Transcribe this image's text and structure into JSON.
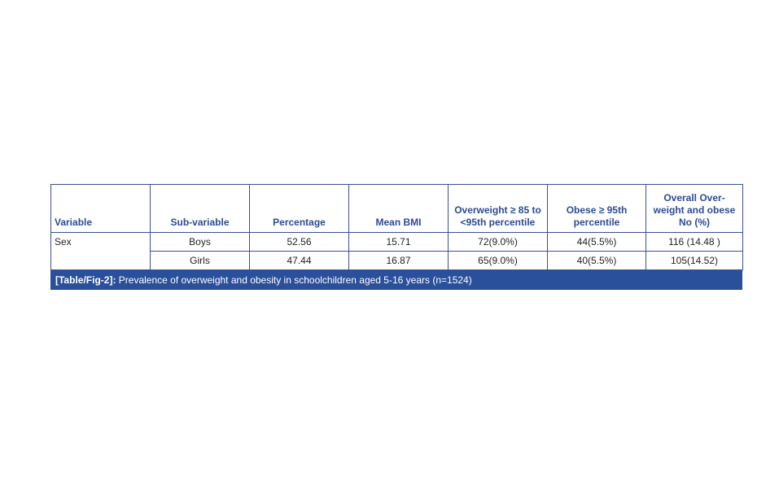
{
  "table": {
    "headers": [
      "Variable",
      "Sub-variable",
      "Percentage",
      "Mean BMI",
      "Overweight ≥ 85 to <95th percentile",
      "Obese ≥ 95th percentile",
      "Overall Over-weight and obese No (%)"
    ],
    "variable": "Sex",
    "rows": [
      {
        "sub": "Boys",
        "percentage": "52.56",
        "mean_bmi": "15.71",
        "overweight": "72(9.0%)",
        "obese": "44(5.5%)",
        "overall": "116 (14.48 )"
      },
      {
        "sub": "Girls",
        "percentage": "47.44",
        "mean_bmi": "16.87",
        "overweight": "65(9.0%)",
        "obese": "40(5.5%)",
        "overall": "105(14.52)"
      }
    ]
  },
  "caption": {
    "label": "[Table/Fig-2]:",
    "text": " Prevalence of overweight and obesity in schoolchildren aged 5-16 years (n=1524)"
  },
  "colors": {
    "border": "#3a4f96",
    "header_text": "#2d4b93",
    "caption_bg": "#2a4f9b"
  }
}
